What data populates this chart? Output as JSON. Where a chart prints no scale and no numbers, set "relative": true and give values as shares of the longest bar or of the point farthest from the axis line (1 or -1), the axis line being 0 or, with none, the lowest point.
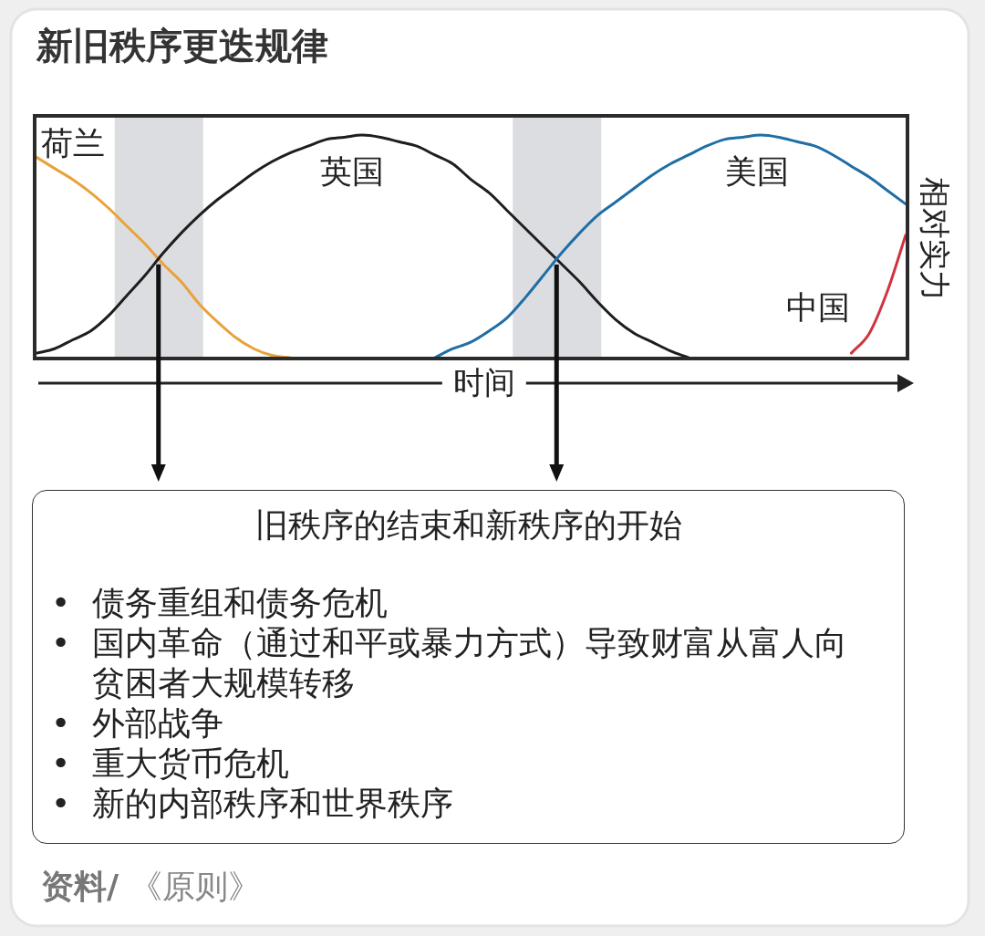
{
  "chart_data": {
    "type": "line",
    "title": "新旧秩序更迭规律",
    "xlabel": "时间",
    "ylabel": "相对实力",
    "relative": true,
    "categories": [
      null,
      null,
      null,
      null,
      null,
      null,
      null,
      null,
      null,
      null,
      null,
      null,
      null,
      null,
      null,
      null,
      null,
      null,
      null,
      null,
      null,
      null,
      null,
      null,
      null,
      null,
      null,
      null,
      null,
      null,
      null,
      null,
      null,
      null,
      null,
      null,
      null,
      null,
      null,
      null,
      null,
      null,
      null,
      null,
      null,
      null,
      null,
      null,
      null
    ],
    "series": [
      {
        "name": "荷兰",
        "color": "#e9a23b",
        "values": [
          0.9,
          0.85,
          0.8,
          0.74,
          0.67,
          0.59,
          0.51,
          0.42,
          0.34,
          0.24,
          0.16,
          0.09,
          0.04,
          0.01,
          0,
          null,
          null,
          null,
          null,
          null,
          null,
          null,
          null,
          null,
          null,
          null,
          null,
          null,
          null,
          null,
          null,
          null,
          null,
          null,
          null,
          null,
          null,
          null,
          null,
          null,
          null,
          null,
          null,
          null,
          null,
          null,
          null,
          null,
          null
        ]
      },
      {
        "name": "英国",
        "color": "#1e1e1e",
        "values": [
          0.02,
          0.04,
          0.08,
          0.12,
          0.19,
          0.28,
          0.37,
          0.47,
          0.56,
          0.64,
          0.71,
          0.77,
          0.83,
          0.88,
          0.92,
          0.95,
          0.98,
          0.99,
          1.0,
          0.99,
          0.97,
          0.95,
          0.91,
          0.87,
          0.8,
          0.74,
          0.66,
          0.58,
          0.5,
          0.42,
          0.34,
          0.25,
          0.17,
          0.11,
          0.07,
          0.03,
          0,
          null,
          null,
          null,
          null,
          null,
          null,
          null,
          null,
          null,
          null,
          null,
          null
        ]
      },
      {
        "name": "美国",
        "color": "#1f6ea6",
        "values": [
          null,
          null,
          null,
          null,
          null,
          null,
          null,
          null,
          null,
          null,
          null,
          null,
          null,
          null,
          null,
          null,
          null,
          null,
          null,
          null,
          null,
          null,
          0,
          0.04,
          0.07,
          0.12,
          0.18,
          0.27,
          0.37,
          0.47,
          0.56,
          0.64,
          0.7,
          0.76,
          0.82,
          0.87,
          0.91,
          0.95,
          0.98,
          0.99,
          1.0,
          0.99,
          0.97,
          0.95,
          0.91,
          0.86,
          0.81,
          0.75,
          0.69
        ]
      },
      {
        "name": "中国",
        "color": "#d0343f",
        "values": [
          null,
          null,
          null,
          null,
          null,
          null,
          null,
          null,
          null,
          null,
          null,
          null,
          null,
          null,
          null,
          null,
          null,
          null,
          null,
          null,
          null,
          null,
          null,
          null,
          null,
          null,
          null,
          null,
          null,
          null,
          null,
          null,
          null,
          null,
          null,
          null,
          null,
          null,
          null,
          null,
          null,
          null,
          null,
          null,
          null,
          0.02,
          0.11,
          0.3,
          0.55
        ]
      }
    ],
    "annotations": [
      "旧秩序的结束和新秩序的开始",
      "• 债务重组和债务危机",
      "• 国内革命（通过和平或暴力方式）导致财富从富人向贫困者大规模转移",
      "• 外部战争",
      "• 重大货币危机",
      "• 新的内部秩序和世界秩序",
      "**资料/** 《原则》"
    ]
  }
}
